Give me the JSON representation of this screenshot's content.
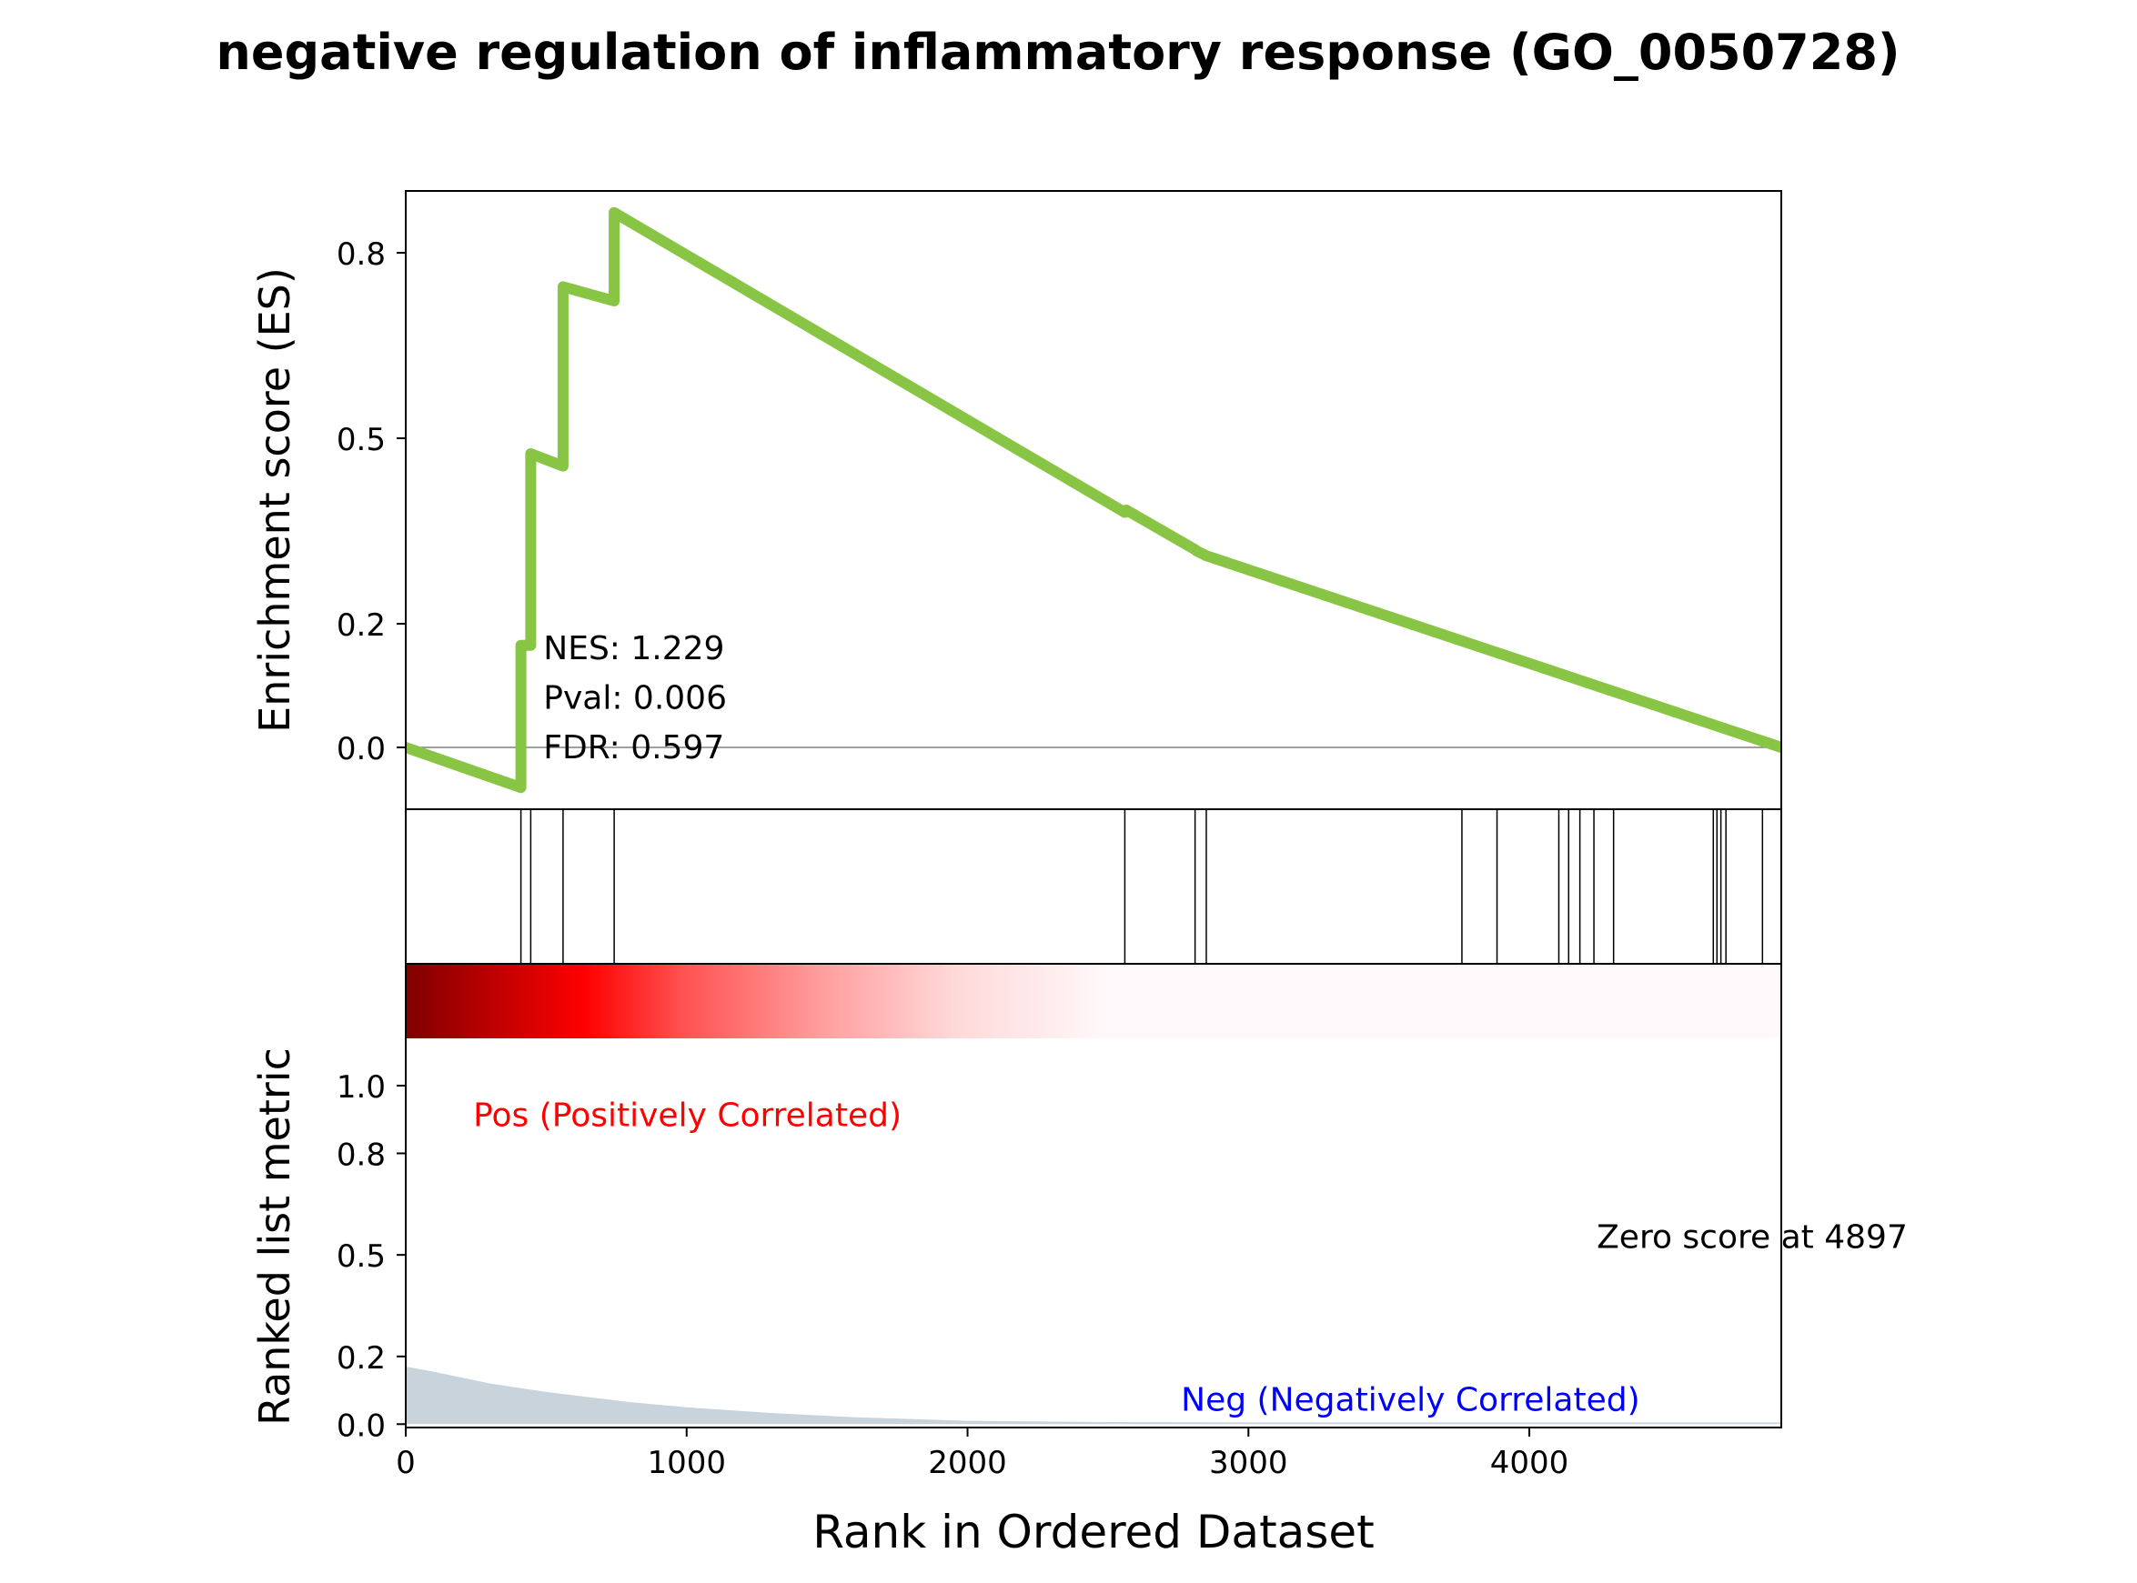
{
  "chart_data": {
    "type": "line",
    "title": "negative regulation of inflammatory response (GO_0050728)",
    "xlabel": "Rank in Ordered Dataset",
    "xlim": [
      0,
      4897
    ],
    "x_ticks": [
      0,
      1000,
      2000,
      3000,
      4000
    ],
    "panels": [
      {
        "name": "enrichment",
        "ylabel": "Enrichment score (ES)",
        "ylim": [
          -0.1,
          0.9
        ],
        "y_ticks": [
          0.0,
          0.2,
          0.5,
          0.8
        ],
        "y_tick_labels": [
          "0.0",
          "0.2",
          "0.5",
          "0.8"
        ],
        "series": [
          {
            "color": "#88C544",
            "x": [
              0,
              410,
              410,
              445,
              445,
              560,
              560,
              742,
              742,
              2560,
              2565,
              2810,
              2815,
              2850,
              4897
            ],
            "y": [
              0.0,
              -0.065,
              0.165,
              0.165,
              0.475,
              0.455,
              0.745,
              0.722,
              0.865,
              0.38,
              0.384,
              0.32,
              0.318,
              0.31,
              0.0
            ]
          }
        ],
        "annotations": [
          {
            "text": "NES: 1.229",
            "x": 490,
            "y": 0.16
          },
          {
            "text": "Pval: 0.006",
            "x": 490,
            "y": 0.08
          },
          {
            "text": "FDR: 0.597",
            "x": 490,
            "y": 0.0
          }
        ]
      },
      {
        "name": "hits",
        "hit_positions": [
          410,
          445,
          560,
          742,
          2560,
          2810,
          2850,
          3760,
          3885,
          4105,
          4140,
          4180,
          4230,
          4300,
          4655,
          4668,
          4682,
          4700,
          4830
        ]
      },
      {
        "name": "ranked_metric",
        "ylabel": "Ranked list metric",
        "ylim": [
          -0.01,
          1.36
        ],
        "y_ticks": [
          0.0,
          0.2,
          0.5,
          0.8,
          1.0
        ],
        "y_tick_labels": [
          "0.0",
          "0.2",
          "0.5",
          "0.8",
          "1.0"
        ],
        "fill_color": "#C9D3DC",
        "x": [
          0,
          100,
          300,
          500,
          800,
          1000,
          1300,
          1600,
          2000,
          2500,
          3000,
          4897
        ],
        "y": [
          0.17,
          0.155,
          0.12,
          0.095,
          0.065,
          0.05,
          0.033,
          0.02,
          0.01,
          0.006,
          0.005,
          0.005
        ],
        "heat_bar": {
          "colors": [
            "#7F0000",
            "#FF0000",
            "#FF5050",
            "#FF9C9C",
            "#FFD9D9",
            "#FFF8FA",
            "#FFF8FA"
          ],
          "stops": [
            0.0,
            0.13,
            0.2,
            0.3,
            0.4,
            0.51,
            1.0
          ]
        },
        "labels": {
          "pos": "Pos (Positively Correlated)",
          "neg": "Neg (Negatively Correlated)",
          "zero": "Zero score at 4897"
        },
        "pos_color": "#FF0000",
        "neg_color": "#0000FF",
        "label_positions": {
          "pos": {
            "x": 240,
            "y": 0.88
          },
          "neg": {
            "x": 2760,
            "y": 0.04
          },
          "zero": {
            "x": 4240,
            "y": 0.52
          }
        }
      }
    ]
  }
}
